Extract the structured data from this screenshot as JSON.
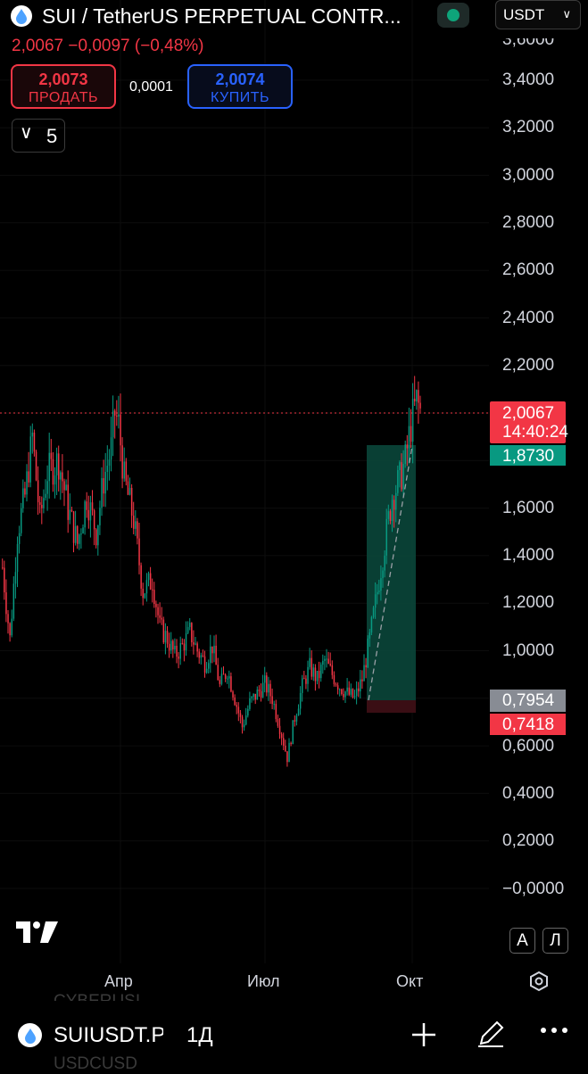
{
  "header": {
    "symbol_title": "SUI / TetherUS PERPETUAL CONTR...",
    "currency": "USDT",
    "price_line": "2,0067 −0,0097 (−0,48%)",
    "market_status_icon": "market-open-dot"
  },
  "trade": {
    "sell_price": "2,0073",
    "sell_label": "ПРОДАТЬ",
    "spread": "0,0001",
    "buy_price": "2,0074",
    "buy_label": "КУПИТЬ"
  },
  "indicators_toggle": {
    "count": "5"
  },
  "price_axis": [
    "3,4000",
    "3,2000",
    "3,0000",
    "2,8000",
    "2,6000",
    "2,4000",
    "2,2000",
    "1,6000",
    "1,4000",
    "1,2000",
    "1,0000",
    "0,6000",
    "0,4000",
    "0,2000",
    "−0,0000"
  ],
  "price_axis_partial_top": "3,6000",
  "tags": {
    "last_price": "2,0067",
    "countdown": "14:40:24",
    "target": "1,8730",
    "entry": "0,7954",
    "stop": "0,7418"
  },
  "time_axis": [
    "Апр",
    "Июл",
    "Окт"
  ],
  "scale_buttons": {
    "auto": "A",
    "log": "Л"
  },
  "bottom_bar": {
    "symbol": "SUIUSDT.P",
    "interval": "1Д",
    "ghost_above": "CYBERUSI",
    "ghost_below": "USDCUSD"
  },
  "colors": {
    "up": "#089981",
    "down": "#f23645",
    "background": "#000000",
    "profit_zone": "#0b4a3d",
    "loss_zone": "#3a0e14"
  },
  "chart_data": {
    "type": "candlestick",
    "symbol": "SUIUSDT.P",
    "interval": "1Д",
    "ylim": [
      -0.05,
      3.62
    ],
    "last_price": 2.0067,
    "long_position": {
      "entry": 0.7954,
      "target": 1.873,
      "stop": 0.7418
    },
    "path": [
      [
        0,
        1.35
      ],
      [
        4,
        1.05
      ],
      [
        8,
        1.5
      ],
      [
        12,
        1.65
      ],
      [
        16,
        1.9
      ],
      [
        20,
        1.55
      ],
      [
        24,
        1.75
      ],
      [
        30,
        1.8
      ],
      [
        35,
        1.6
      ],
      [
        40,
        1.45
      ],
      [
        45,
        1.65
      ],
      [
        50,
        1.5
      ],
      [
        54,
        1.72
      ],
      [
        58,
        1.85
      ],
      [
        60,
        2.0
      ],
      [
        62,
        1.95
      ],
      [
        65,
        1.72
      ],
      [
        70,
        1.55
      ],
      [
        75,
        1.25
      ],
      [
        80,
        1.3
      ],
      [
        84,
        1.1
      ],
      [
        88,
        1.05
      ],
      [
        92,
        0.98
      ],
      [
        96,
        1.02
      ],
      [
        100,
        1.08
      ],
      [
        104,
        1.0
      ],
      [
        108,
        0.95
      ],
      [
        112,
        1.02
      ],
      [
        116,
        0.85
      ],
      [
        120,
        0.92
      ],
      [
        124,
        0.8
      ],
      [
        128,
        0.68
      ],
      [
        132,
        0.78
      ],
      [
        136,
        0.82
      ],
      [
        140,
        0.86
      ],
      [
        144,
        0.8
      ],
      [
        148,
        0.68
      ],
      [
        152,
        0.55
      ],
      [
        156,
        0.72
      ],
      [
        160,
        0.85
      ],
      [
        164,
        0.93
      ],
      [
        168,
        0.88
      ],
      [
        172,
        0.96
      ],
      [
        176,
        0.9
      ],
      [
        180,
        0.85
      ],
      [
        184,
        0.82
      ],
      [
        188,
        0.8
      ],
      [
        192,
        0.88
      ],
      [
        196,
        1.05
      ],
      [
        200,
        1.25
      ],
      [
        204,
        1.45
      ],
      [
        208,
        1.65
      ],
      [
        212,
        1.72
      ],
      [
        215,
        1.8
      ],
      [
        218,
        1.95
      ],
      [
        221,
        2.05
      ],
      [
        223,
        2.0067
      ]
    ]
  }
}
